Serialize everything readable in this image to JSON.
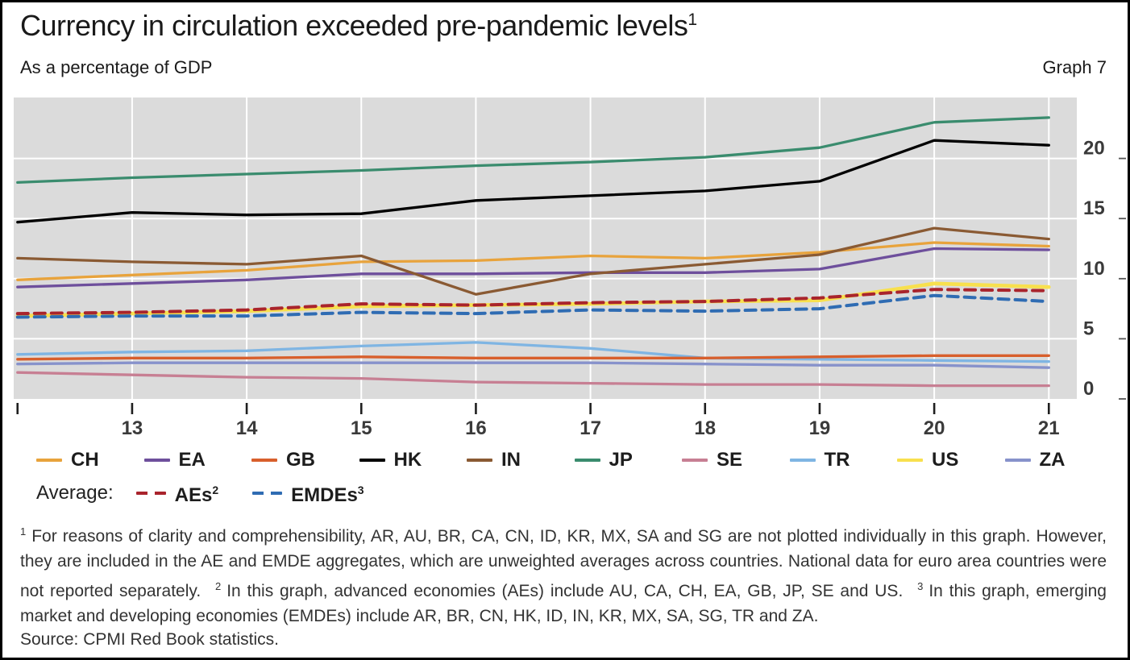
{
  "chart_data": {
    "type": "line",
    "title": "Currency in circulation exceeded pre-pandemic levels",
    "title_sup": "1",
    "subtitle": "As a percentage of GDP",
    "graph_label": "Graph 7",
    "years": [
      2012,
      2013,
      2014,
      2015,
      2016,
      2017,
      2018,
      2019,
      2020,
      2021
    ],
    "xticklabels": [
      "",
      "13",
      "14",
      "15",
      "16",
      "17",
      "18",
      "19",
      "20",
      "21"
    ],
    "yticks": [
      0,
      5,
      10,
      15,
      20
    ],
    "ylim": [
      0,
      25.1
    ],
    "yaxis_side": "right",
    "grid": true,
    "plot_background": "#DBDBDB",
    "gridline_color": "#FFFFFF",
    "legend_position": "bottom",
    "legend_row2_prefix": "Average:",
    "series": [
      {
        "name": "CH",
        "color": "#E8A33C",
        "values": [
          9.9,
          10.3,
          10.7,
          11.4,
          11.5,
          11.9,
          11.7,
          12.2,
          13.0,
          12.7
        ]
      },
      {
        "name": "EA",
        "color": "#6E4F9C",
        "values": [
          9.3,
          9.6,
          9.9,
          10.4,
          10.4,
          10.5,
          10.5,
          10.8,
          12.5,
          12.4
        ]
      },
      {
        "name": "GB",
        "color": "#D85F2C",
        "values": [
          3.3,
          3.4,
          3.4,
          3.5,
          3.4,
          3.4,
          3.4,
          3.5,
          3.6,
          3.6
        ]
      },
      {
        "name": "HK",
        "color": "#000000",
        "values": [
          14.7,
          15.5,
          15.3,
          15.4,
          16.5,
          16.9,
          17.3,
          18.1,
          21.5,
          21.1
        ]
      },
      {
        "name": "IN",
        "color": "#8A5A33",
        "values": [
          11.7,
          11.4,
          11.2,
          11.9,
          8.7,
          10.4,
          11.2,
          12.0,
          14.2,
          13.3
        ]
      },
      {
        "name": "JP",
        "color": "#3A8C6E",
        "values": [
          18.0,
          18.4,
          18.7,
          19.0,
          19.4,
          19.7,
          20.1,
          20.9,
          23.0,
          23.4
        ]
      },
      {
        "name": "SE",
        "color": "#C77F93",
        "values": [
          2.2,
          2.0,
          1.8,
          1.7,
          1.4,
          1.3,
          1.2,
          1.2,
          1.1,
          1.1
        ]
      },
      {
        "name": "TR",
        "color": "#7FB5E3",
        "values": [
          3.7,
          3.9,
          4.0,
          4.4,
          4.7,
          4.2,
          3.4,
          3.3,
          3.2,
          3.1
        ]
      },
      {
        "name": "US",
        "color": "#F8E04E",
        "width": 4.6,
        "values": [
          6.9,
          7.1,
          7.3,
          7.7,
          7.8,
          7.9,
          8.1,
          8.2,
          9.6,
          9.3
        ]
      },
      {
        "name": "ZA",
        "color": "#8792CB",
        "values": [
          2.9,
          3.0,
          3.0,
          3.0,
          3.0,
          3.0,
          2.9,
          2.8,
          2.8,
          2.6
        ]
      },
      {
        "name": "AEs",
        "legend_sup": "2",
        "color": "#A9242C",
        "dashed": true,
        "values": [
          7.1,
          7.2,
          7.4,
          7.9,
          7.8,
          8.0,
          8.1,
          8.4,
          9.1,
          9.0
        ]
      },
      {
        "name": "EMDEs",
        "legend_sup": "3",
        "color": "#2F6CB3",
        "dashed": true,
        "values": [
          6.8,
          6.9,
          6.9,
          7.2,
          7.1,
          7.4,
          7.3,
          7.5,
          8.6,
          8.1
        ]
      }
    ]
  },
  "footnotes": [
    {
      "sup": "1",
      "text": "For reasons of clarity and comprehensibility, AR, AU, BR, CA, CN, ID, KR, MX, SA and SG are not plotted individually in this graph. However, they are included in the AE and EMDE aggregates, which are unweighted averages across countries. National data for euro area countries were not reported separately."
    },
    {
      "sup": "2",
      "text": "In this graph, advanced economies (AEs) include AU, CA, CH, EA, GB, JP, SE and US."
    },
    {
      "sup": "3",
      "text": "In this graph, emerging market and developing economies (EMDEs) include AR, BR, CN, HK, ID, IN, KR, MX, SA, SG, TR and ZA."
    }
  ],
  "source": "Source: CPMI Red Book statistics."
}
